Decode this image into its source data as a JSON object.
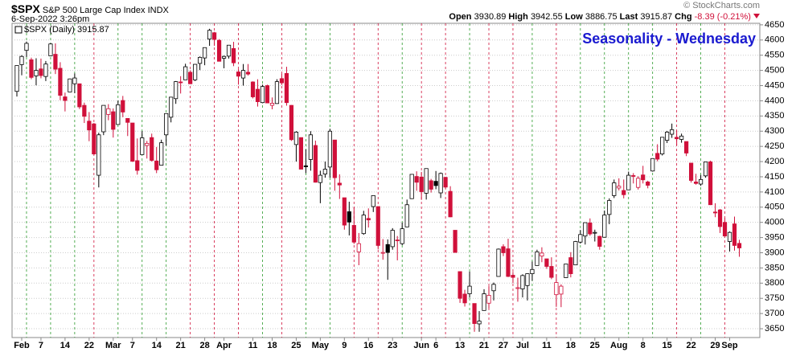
{
  "header": {
    "symbol": "$SPX",
    "name": "S&P 500 Large Cap Index",
    "exchange": "INDX",
    "timestamp": "6-Sep-2022 3:26pm",
    "quote": [
      {
        "label": "Open",
        "value": "3930.89"
      },
      {
        "label": "High",
        "value": "3942.55"
      },
      {
        "label": "Low",
        "value": "3886.75"
      },
      {
        "label": "Last",
        "value": "3915.87"
      },
      {
        "label": "Chg",
        "value": "-8.39 (-0.21%)"
      }
    ],
    "copyright": "© StockCharts.com"
  },
  "chart_data": {
    "type": "candlestick",
    "title": "Seasonality - Wednesday",
    "legend": "$SPX (Daily) 3915.87",
    "categories": [
      null,
      "Feb",
      null,
      null,
      null,
      "7",
      null,
      null,
      null,
      null,
      "14",
      null,
      null,
      null,
      null,
      "22",
      null,
      null,
      null,
      null,
      "Mar",
      null,
      null,
      null,
      "7",
      null,
      null,
      null,
      null,
      "14",
      null,
      null,
      null,
      null,
      "21",
      null,
      null,
      null,
      null,
      "28",
      null,
      null,
      null,
      "Apr",
      null,
      null,
      null,
      null,
      null,
      "11",
      null,
      null,
      null,
      "18",
      null,
      null,
      null,
      null,
      "25",
      null,
      null,
      null,
      null,
      "May",
      null,
      null,
      null,
      null,
      "9",
      null,
      null,
      null,
      null,
      "16",
      null,
      null,
      null,
      null,
      "23",
      null,
      null,
      null,
      null,
      null,
      "Jun",
      null,
      null,
      "6",
      null,
      null,
      null,
      null,
      "13",
      null,
      null,
      null,
      null,
      "21",
      null,
      null,
      null,
      "27",
      null,
      null,
      null,
      "Jul",
      null,
      null,
      null,
      null,
      "11",
      null,
      null,
      null,
      null,
      "18",
      null,
      null,
      null,
      null,
      "25",
      null,
      null,
      null,
      null,
      "Aug",
      null,
      null,
      null,
      null,
      "8",
      null,
      null,
      null,
      null,
      "15",
      null,
      null,
      null,
      null,
      "22",
      null,
      null,
      null,
      null,
      "29",
      null,
      null,
      "Sep",
      null,
      null
    ],
    "candles": [
      [
        4431,
        4516,
        4414,
        4516
      ],
      [
        4519,
        4550,
        4484,
        4546
      ],
      [
        4566,
        4595,
        4544,
        4589
      ],
      [
        4535,
        4542,
        4471,
        4477
      ],
      [
        4482,
        4540,
        4451,
        4500
      ],
      [
        4505,
        4539,
        4474,
        4483
      ],
      [
        4480,
        4531,
        4465,
        4521
      ],
      [
        4548,
        4590,
        4547,
        4587
      ],
      [
        4553,
        4589,
        4488,
        4504
      ],
      [
        4507,
        4527,
        4402,
        4418
      ],
      [
        4413,
        4427,
        4365,
        4401
      ],
      [
        4429,
        4473,
        4429,
        4472
      ],
      [
        4456,
        4490,
        4425,
        4475
      ],
      [
        4456,
        4456,
        4373,
        4380
      ],
      [
        4385,
        4394,
        4327,
        4349
      ],
      [
        4333,
        4363,
        4267,
        4304
      ],
      [
        4324,
        4327,
        4222,
        4225
      ],
      [
        4155,
        4295,
        4115,
        4288
      ],
      [
        4298,
        4385,
        4287,
        4385
      ],
      [
        4355,
        4389,
        4336,
        4374
      ],
      [
        4364,
        4375,
        4279,
        4306
      ],
      [
        4322,
        4401,
        4322,
        4387
      ],
      [
        4401,
        4416,
        4346,
        4363
      ],
      [
        4342,
        4343,
        4284,
        4329
      ],
      [
        4327,
        4327,
        4199,
        4201
      ],
      [
        4203,
        4276,
        4157,
        4171
      ],
      [
        4223,
        4300,
        4223,
        4278
      ],
      [
        4253,
        4268,
        4210,
        4260
      ],
      [
        4279,
        4292,
        4200,
        4204
      ],
      [
        4202,
        4248,
        4162,
        4173
      ],
      [
        4188,
        4272,
        4187,
        4262
      ],
      [
        4288,
        4358,
        4253,
        4358
      ],
      [
        4346,
        4412,
        4329,
        4412
      ],
      [
        4407,
        4465,
        4390,
        4463
      ],
      [
        4462,
        4481,
        4424,
        4461
      ],
      [
        4469,
        4522,
        4469,
        4512
      ],
      [
        4494,
        4500,
        4455,
        4456
      ],
      [
        4469,
        4521,
        4465,
        4520
      ],
      [
        4523,
        4546,
        4501,
        4543
      ],
      [
        4541,
        4575,
        4517,
        4575
      ],
      [
        4603,
        4637,
        4581,
        4632
      ],
      [
        4624,
        4627,
        4581,
        4602
      ],
      [
        4599,
        4603,
        4530,
        4530
      ],
      [
        4540,
        4549,
        4507,
        4546
      ],
      [
        4547,
        4583,
        4539,
        4583
      ],
      [
        4572,
        4594,
        4514,
        4525
      ],
      [
        4495,
        4504,
        4453,
        4481
      ],
      [
        4475,
        4521,
        4450,
        4500
      ],
      [
        4494,
        4521,
        4483,
        4488
      ],
      [
        4462,
        4464,
        4408,
        4413
      ],
      [
        4438,
        4471,
        4381,
        4397
      ],
      [
        4394,
        4453,
        4392,
        4447
      ],
      [
        4450,
        4453,
        4392,
        4393
      ],
      [
        4385,
        4411,
        4372,
        4392
      ],
      [
        4391,
        4471,
        4390,
        4463
      ],
      [
        4473,
        4489,
        4452,
        4459
      ],
      [
        4490,
        4512,
        4384,
        4394
      ],
      [
        4385,
        4386,
        4268,
        4272
      ],
      [
        4256,
        4300,
        4200,
        4297
      ],
      [
        4279,
        4279,
        4175,
        4175
      ],
      [
        4186,
        4240,
        4162,
        4183
      ],
      [
        4207,
        4300,
        4170,
        4288
      ],
      [
        4253,
        4269,
        4131,
        4132
      ],
      [
        4131,
        4170,
        4063,
        4155
      ],
      [
        4159,
        4200,
        4147,
        4175
      ],
      [
        4182,
        4308,
        4147,
        4300
      ],
      [
        4271,
        4271,
        4104,
        4147
      ],
      [
        4129,
        4158,
        4077,
        4123
      ],
      [
        4081,
        4081,
        3976,
        3991
      ],
      [
        4035,
        4068,
        3957,
        4001
      ],
      [
        3990,
        4050,
        3929,
        3935
      ],
      [
        3903,
        3965,
        3859,
        3930
      ],
      [
        3963,
        4038,
        3959,
        4024
      ],
      [
        4013,
        4046,
        3983,
        4008
      ],
      [
        4052,
        4089,
        4034,
        4088
      ],
      [
        4052,
        4052,
        3911,
        3924
      ],
      [
        3900,
        3945,
        3877,
        3901
      ],
      [
        3927,
        3944,
        3811,
        3901
      ],
      [
        3920,
        3981,
        3910,
        3974
      ],
      [
        3942,
        3955,
        3875,
        3941
      ],
      [
        3930,
        3999,
        3925,
        3979
      ],
      [
        3985,
        4075,
        3985,
        4058
      ],
      [
        4078,
        4158,
        4077,
        4158
      ],
      [
        4151,
        4168,
        4104,
        4132
      ],
      [
        4149,
        4166,
        4074,
        4101
      ],
      [
        4096,
        4177,
        4075,
        4177
      ],
      [
        4137,
        4143,
        4098,
        4109
      ],
      [
        4135,
        4169,
        4109,
        4121
      ],
      [
        4097,
        4164,
        4080,
        4161
      ],
      [
        4148,
        4150,
        4111,
        4116
      ],
      [
        4102,
        4119,
        4017,
        4018
      ],
      [
        3974,
        3974,
        3900,
        3901
      ],
      [
        3838,
        3838,
        3735,
        3750
      ],
      [
        3764,
        3778,
        3723,
        3735
      ],
      [
        3765,
        3838,
        3752,
        3790
      ],
      [
        3733,
        3733,
        3640,
        3667
      ],
      [
        3666,
        3708,
        3640,
        3675
      ],
      [
        3710,
        3780,
        3710,
        3765
      ],
      [
        3734,
        3790,
        3717,
        3760
      ],
      [
        3775,
        3802,
        3743,
        3796
      ],
      [
        3822,
        3914,
        3822,
        3912
      ],
      [
        3920,
        3928,
        3889,
        3900
      ],
      [
        3913,
        3946,
        3820,
        3822
      ],
      [
        3826,
        3837,
        3800,
        3819
      ],
      [
        3785,
        3818,
        3739,
        3785
      ],
      [
        3781,
        3829,
        3753,
        3825
      ],
      [
        3792,
        3832,
        3743,
        3831
      ],
      [
        3831,
        3871,
        3808,
        3845
      ],
      [
        3858,
        3910,
        3858,
        3903
      ],
      [
        3889,
        3918,
        3869,
        3899
      ],
      [
        3880,
        3880,
        3847,
        3855
      ],
      [
        3855,
        3885,
        3813,
        3819
      ],
      [
        3762,
        3829,
        3722,
        3802
      ],
      [
        3764,
        3796,
        3721,
        3790
      ],
      [
        3818,
        3863,
        3817,
        3863
      ],
      [
        3884,
        3902,
        3819,
        3831
      ],
      [
        3860,
        3939,
        3860,
        3937
      ],
      [
        3935,
        3975,
        3930,
        3960
      ],
      [
        3955,
        3999,
        3927,
        3999
      ],
      [
        3998,
        4013,
        3956,
        3962
      ],
      [
        3966,
        3976,
        3937,
        3967
      ],
      [
        3954,
        3956,
        3910,
        3921
      ],
      [
        3951,
        4039,
        3951,
        4024
      ],
      [
        4026,
        4079,
        3994,
        4072
      ],
      [
        4088,
        4141,
        4080,
        4130
      ],
      [
        4113,
        4145,
        4105,
        4119
      ],
      [
        4105,
        4141,
        4079,
        4091
      ],
      [
        4107,
        4167,
        4107,
        4155
      ],
      [
        4154,
        4162,
        4128,
        4152
      ],
      [
        4115,
        4152,
        4108,
        4145
      ],
      [
        4156,
        4186,
        4128,
        4140
      ],
      [
        4133,
        4137,
        4112,
        4122
      ],
      [
        4169,
        4211,
        4167,
        4210
      ],
      [
        4227,
        4257,
        4201,
        4208
      ],
      [
        4225,
        4280,
        4220,
        4280
      ],
      [
        4270,
        4301,
        4261,
        4297
      ],
      [
        4290,
        4325,
        4278,
        4305
      ],
      [
        4280,
        4302,
        4253,
        4275
      ],
      [
        4273,
        4292,
        4262,
        4284
      ],
      [
        4266,
        4266,
        4218,
        4228
      ],
      [
        4195,
        4195,
        4131,
        4138
      ],
      [
        4133,
        4160,
        4124,
        4128
      ],
      [
        4126,
        4156,
        4120,
        4141
      ],
      [
        4153,
        4200,
        4147,
        4199
      ],
      [
        4199,
        4203,
        4057,
        4058
      ],
      [
        4034,
        4063,
        4017,
        4031
      ],
      [
        4041,
        4044,
        3965,
        3986
      ],
      [
        4000,
        4015,
        3954,
        3955
      ],
      [
        3937,
        3970,
        3904,
        3967
      ],
      [
        3995,
        4019,
        3907,
        3924
      ],
      [
        3930.89,
        3942.55,
        3886.75,
        3915.87
      ]
    ],
    "up_color": "#000000",
    "down_color": "#d0103a",
    "title_color": "#1a1ad0",
    "ylim": [
      3621,
      4655
    ],
    "yticks": [
      3650,
      3700,
      3750,
      3800,
      3850,
      3900,
      3950,
      4000,
      4050,
      4100,
      4150,
      4200,
      4250,
      4300,
      4350,
      4400,
      4450,
      4500,
      4550,
      4600,
      4650
    ],
    "grid": true
  }
}
